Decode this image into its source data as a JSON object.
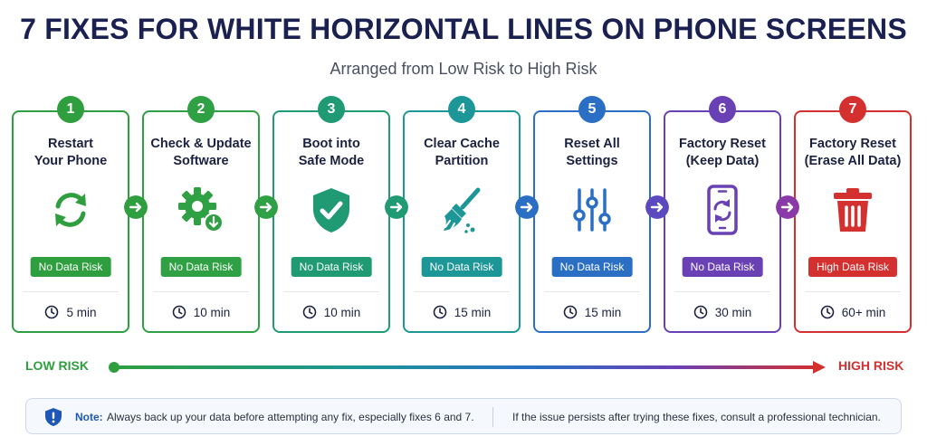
{
  "title": "7 FIXES FOR WHITE HORIZONTAL LINES ON PHONE SCREENS",
  "subtitle": "Arranged from Low Risk to High Risk",
  "steps": [
    {
      "num": "1",
      "title": "Restart\nYour Phone",
      "badge": "No Data Risk",
      "time": "5 min",
      "color": "#2e9e3f",
      "badge_color": "#2e9e3f",
      "icon": "restart-icon"
    },
    {
      "num": "2",
      "title": "Check & Update\nSoftware",
      "badge": "No Data Risk",
      "time": "10 min",
      "color": "#2fa044",
      "badge_color": "#2fa044",
      "icon": "settings-update-icon"
    },
    {
      "num": "3",
      "title": "Boot into\nSafe Mode",
      "badge": "No Data Risk",
      "time": "10 min",
      "color": "#1f9a72",
      "badge_color": "#1f9a72",
      "icon": "shield-check-icon"
    },
    {
      "num": "4",
      "title": "Clear Cache\nPartition",
      "badge": "No Data Risk",
      "time": "15 min",
      "color": "#1c9696",
      "badge_color": "#1c9696",
      "icon": "broom-icon"
    },
    {
      "num": "5",
      "title": "Reset All\nSettings",
      "badge": "No Data Risk",
      "time": "15 min",
      "color": "#2a6fc4",
      "badge_color": "#2a6fc4",
      "icon": "sliders-icon"
    },
    {
      "num": "6",
      "title": "Factory Reset\n(Keep Data)",
      "badge": "No Data Risk",
      "time": "30 min",
      "color": "#6a40b5",
      "badge_color": "#6a40b5",
      "icon": "phone-sync-icon"
    },
    {
      "num": "7",
      "title": "Factory Reset\n(Erase All Data)",
      "badge": "High Data Risk",
      "time": "60+ min",
      "color": "#d3302f",
      "badge_color": "#d3302f",
      "icon": "trash-icon"
    }
  ],
  "scale": {
    "low_label": "LOW RISK",
    "high_label": "HIGH RISK"
  },
  "note": {
    "label": "Note:",
    "text1": "Always back up your data before attempting any fix, especially fixes 6 and 7.",
    "text2": "If the issue persists after trying these fixes, consult a professional technician."
  }
}
